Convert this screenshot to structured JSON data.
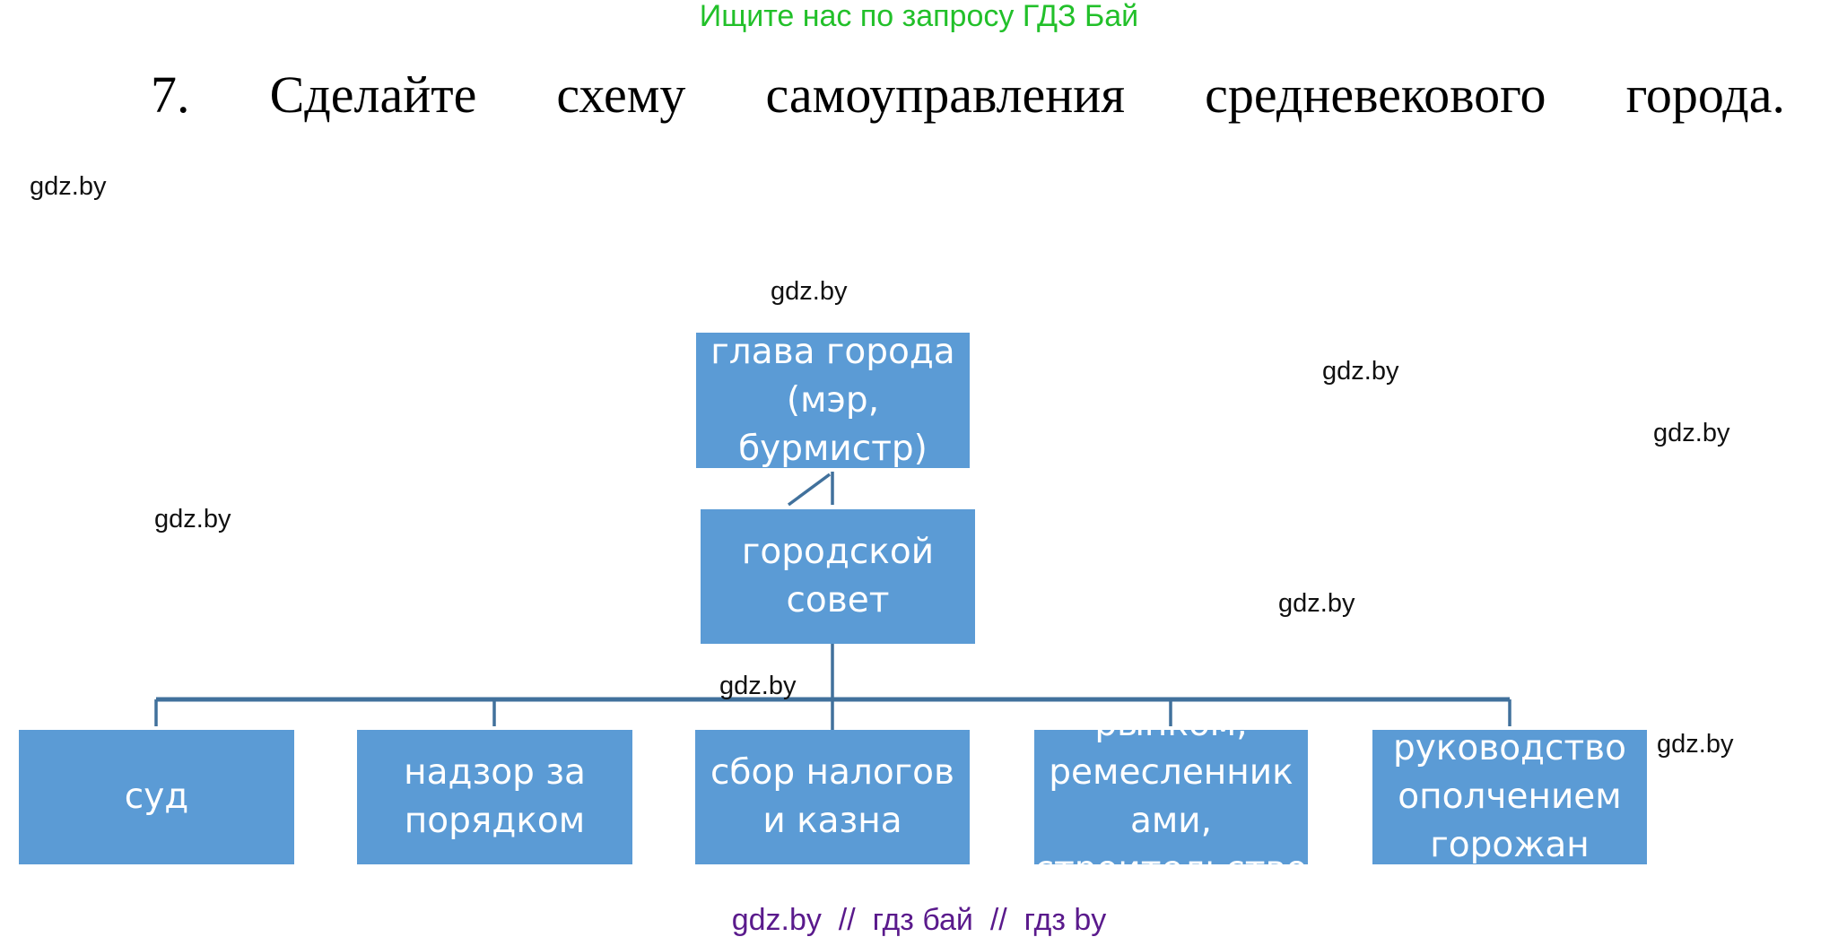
{
  "header": {
    "text": "Ищите нас по запросу ГДЗ Бай",
    "color": "#22c02a"
  },
  "task": {
    "number": "7.",
    "words": [
      "Сделайте",
      "схему",
      "самоуправления",
      "средневекового",
      "города."
    ]
  },
  "watermark": "gdz.by",
  "diagram": {
    "box_color": "#5b9bd5",
    "line_color": "#41719c",
    "head": [
      "глава города",
      "(мэр,",
      "бурмистр)"
    ],
    "council": [
      "городской",
      "совет"
    ],
    "functions": [
      [
        "суд"
      ],
      [
        "надзор за",
        "порядком"
      ],
      [
        "сбор налогов",
        "и казна"
      ],
      [
        "рынком,",
        "ремесленник",
        "ами,",
        "строительство"
      ],
      [
        "руководство",
        "ополчением",
        "горожан"
      ]
    ]
  },
  "footer": {
    "text": "gdz.by  //  гдз бай  //  гдз by",
    "color": "#5a1a8c"
  }
}
